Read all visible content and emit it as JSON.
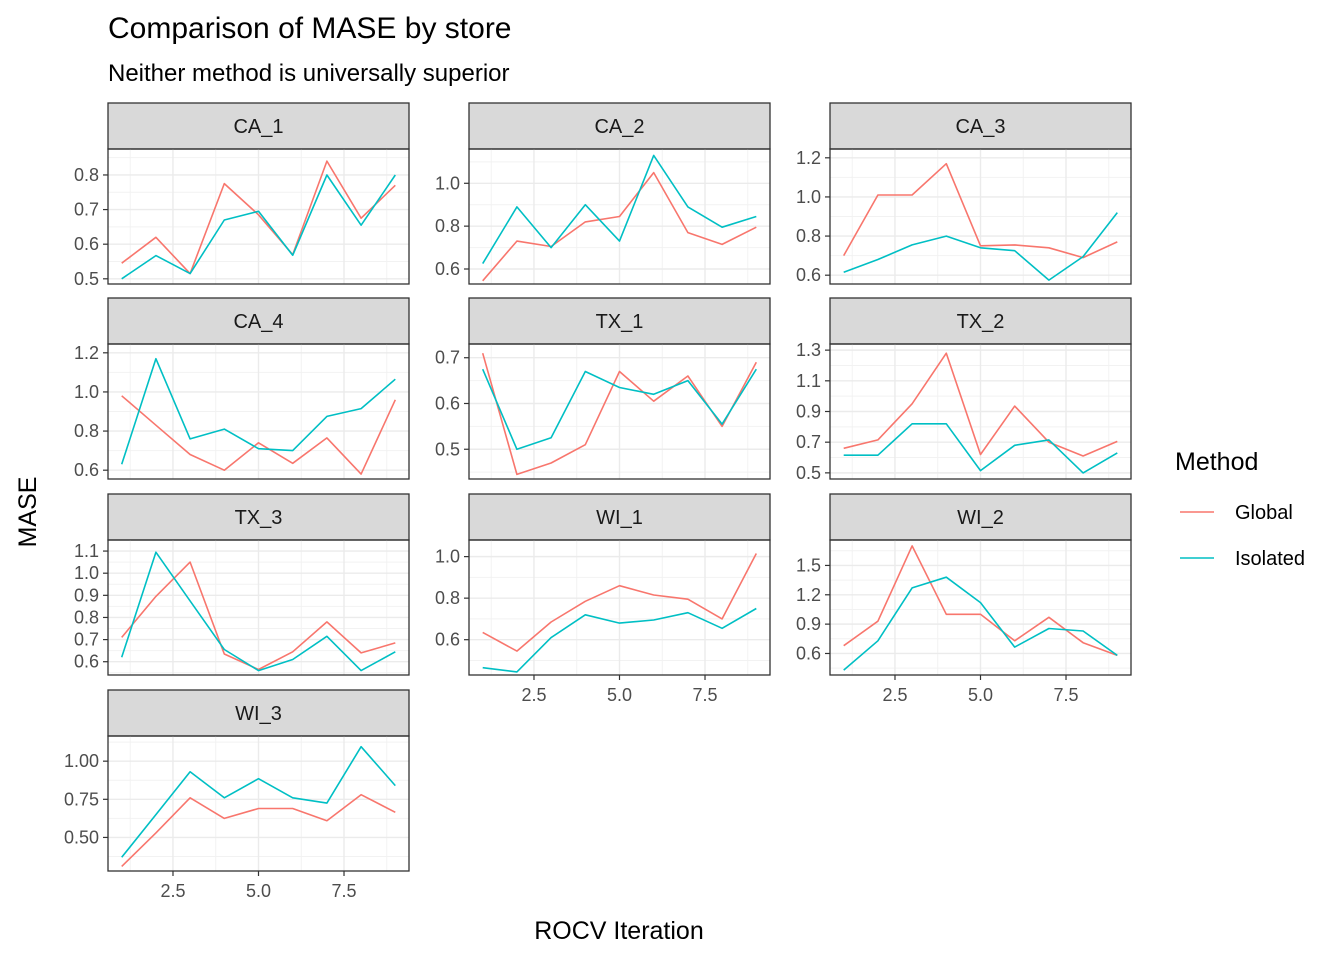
{
  "chart_data": {
    "type": "line",
    "title": "Comparison of MASE by store",
    "subtitle": "Neither method is universally superior",
    "xlabel": "ROCV Iteration",
    "ylabel": "MASE",
    "x": [
      1,
      2,
      3,
      4,
      5,
      6,
      7,
      8,
      9
    ],
    "xlim": [
      0.6,
      9.4
    ],
    "x_ticks": [
      "2.5",
      "5.0",
      "7.5"
    ],
    "x_tick_values": [
      2.5,
      5.0,
      7.5
    ],
    "grid": true,
    "legend": {
      "title": "Method",
      "position": "right",
      "items": [
        {
          "label": "Global",
          "color": "#F8766D"
        },
        {
          "label": "Isolated",
          "color": "#00BFC4"
        }
      ]
    },
    "panels": [
      {
        "name": "CA_1",
        "ylim": [
          0.485,
          0.875
        ],
        "y_ticks": [
          "0.5",
          "0.6",
          "0.7",
          "0.8"
        ],
        "y_tick_values": [
          0.5,
          0.6,
          0.7,
          0.8
        ],
        "series": [
          {
            "name": "Global",
            "values": [
              0.545,
              0.62,
              0.515,
              0.775,
              0.685,
              0.57,
              0.84,
              0.675,
              0.77
            ]
          },
          {
            "name": "Isolated",
            "values": [
              0.5,
              0.567,
              0.515,
              0.67,
              0.695,
              0.568,
              0.8,
              0.655,
              0.8
            ]
          }
        ]
      },
      {
        "name": "CA_2",
        "ylim": [
          0.53,
          1.16
        ],
        "y_ticks": [
          "0.6",
          "0.8",
          "1.0"
        ],
        "y_tick_values": [
          0.6,
          0.8,
          1.0
        ],
        "series": [
          {
            "name": "Global",
            "values": [
              0.545,
              0.73,
              0.705,
              0.82,
              0.845,
              1.05,
              0.77,
              0.715,
              0.795
            ]
          },
          {
            "name": "Isolated",
            "values": [
              0.625,
              0.89,
              0.7,
              0.9,
              0.73,
              1.13,
              0.89,
              0.795,
              0.845
            ]
          }
        ]
      },
      {
        "name": "CA_3",
        "ylim": [
          0.555,
          1.245
        ],
        "y_ticks": [
          "0.6",
          "0.8",
          "1.0",
          "1.2"
        ],
        "y_tick_values": [
          0.6,
          0.8,
          1.0,
          1.2
        ],
        "series": [
          {
            "name": "Global",
            "values": [
              0.7,
              1.01,
              1.01,
              1.17,
              0.75,
              0.755,
              0.74,
              0.69,
              0.77
            ]
          },
          {
            "name": "Isolated",
            "values": [
              0.615,
              0.68,
              0.755,
              0.8,
              0.74,
              0.725,
              0.575,
              0.695,
              0.92
            ]
          }
        ]
      },
      {
        "name": "CA_4",
        "ylim": [
          0.555,
          1.245
        ],
        "y_ticks": [
          "0.6",
          "0.8",
          "1.0",
          "1.2"
        ],
        "y_tick_values": [
          0.6,
          0.8,
          1.0,
          1.2
        ],
        "series": [
          {
            "name": "Global",
            "values": [
              0.98,
              0.83,
              0.68,
              0.6,
              0.74,
              0.635,
              0.765,
              0.58,
              0.96
            ]
          },
          {
            "name": "Isolated",
            "values": [
              0.63,
              1.17,
              0.76,
              0.81,
              0.71,
              0.7,
              0.875,
              0.915,
              1.065
            ]
          }
        ]
      },
      {
        "name": "TX_1",
        "ylim": [
          0.435,
          0.73
        ],
        "y_ticks": [
          "0.5",
          "0.6",
          "0.7"
        ],
        "y_tick_values": [
          0.5,
          0.6,
          0.7
        ],
        "series": [
          {
            "name": "Global",
            "values": [
              0.71,
              0.445,
              0.47,
              0.51,
              0.67,
              0.605,
              0.66,
              0.55,
              0.69
            ]
          },
          {
            "name": "Isolated",
            "values": [
              0.675,
              0.5,
              0.525,
              0.67,
              0.635,
              0.62,
              0.65,
              0.555,
              0.675
            ]
          }
        ]
      },
      {
        "name": "TX_2",
        "ylim": [
          0.46,
          1.34
        ],
        "y_ticks": [
          "0.5",
          "0.7",
          "0.9",
          "1.1",
          "1.3"
        ],
        "y_tick_values": [
          0.5,
          0.7,
          0.9,
          1.1,
          1.3
        ],
        "series": [
          {
            "name": "Global",
            "values": [
              0.66,
              0.715,
              0.95,
              1.28,
              0.62,
              0.935,
              0.7,
              0.61,
              0.705
            ]
          },
          {
            "name": "Isolated",
            "values": [
              0.615,
              0.615,
              0.82,
              0.82,
              0.515,
              0.68,
              0.715,
              0.5,
              0.63
            ]
          }
        ]
      },
      {
        "name": "TX_3",
        "ylim": [
          0.54,
          1.15
        ],
        "y_ticks": [
          "0.6",
          "0.7",
          "0.8",
          "0.9",
          "1.0",
          "1.1"
        ],
        "y_tick_values": [
          0.6,
          0.7,
          0.8,
          0.9,
          1.0,
          1.1
        ],
        "series": [
          {
            "name": "Global",
            "values": [
              0.71,
              0.895,
              1.05,
              0.635,
              0.565,
              0.645,
              0.78,
              0.64,
              0.685
            ]
          },
          {
            "name": "Isolated",
            "values": [
              0.62,
              1.095,
              0.875,
              0.655,
              0.56,
              0.61,
              0.715,
              0.56,
              0.645
            ]
          }
        ]
      },
      {
        "name": "WI_1",
        "ylim": [
          0.43,
          1.08
        ],
        "y_ticks": [
          "0.6",
          "0.8",
          "1.0"
        ],
        "y_tick_values": [
          0.6,
          0.8,
          1.0
        ],
        "series": [
          {
            "name": "Global",
            "values": [
              0.635,
              0.545,
              0.685,
              0.785,
              0.86,
              0.815,
              0.795,
              0.7,
              1.015
            ]
          },
          {
            "name": "Isolated",
            "values": [
              0.465,
              0.445,
              0.61,
              0.72,
              0.68,
              0.695,
              0.73,
              0.655,
              0.75
            ]
          }
        ]
      },
      {
        "name": "WI_2",
        "ylim": [
          0.38,
          1.76
        ],
        "y_ticks": [
          "0.6",
          "0.9",
          "1.2",
          "1.5"
        ],
        "y_tick_values": [
          0.6,
          0.9,
          1.2,
          1.5
        ],
        "series": [
          {
            "name": "Global",
            "values": [
              0.68,
              0.93,
              1.7,
              1.0,
              1.0,
              0.73,
              0.97,
              0.71,
              0.58
            ]
          },
          {
            "name": "Isolated",
            "values": [
              0.43,
              0.73,
              1.27,
              1.38,
              1.12,
              0.665,
              0.855,
              0.83,
              0.58
            ]
          }
        ]
      },
      {
        "name": "WI_3",
        "ylim": [
          0.28,
          1.165
        ],
        "y_ticks": [
          "0.50",
          "0.75",
          "1.00"
        ],
        "y_tick_values": [
          0.5,
          0.75,
          1.0
        ],
        "series": [
          {
            "name": "Global",
            "values": [
              0.31,
              0.53,
              0.76,
              0.625,
              0.69,
              0.69,
              0.61,
              0.78,
              0.665
            ]
          },
          {
            "name": "Isolated",
            "values": [
              0.37,
              0.65,
              0.93,
              0.76,
              0.885,
              0.76,
              0.725,
              1.095,
              0.84
            ]
          }
        ]
      }
    ]
  }
}
